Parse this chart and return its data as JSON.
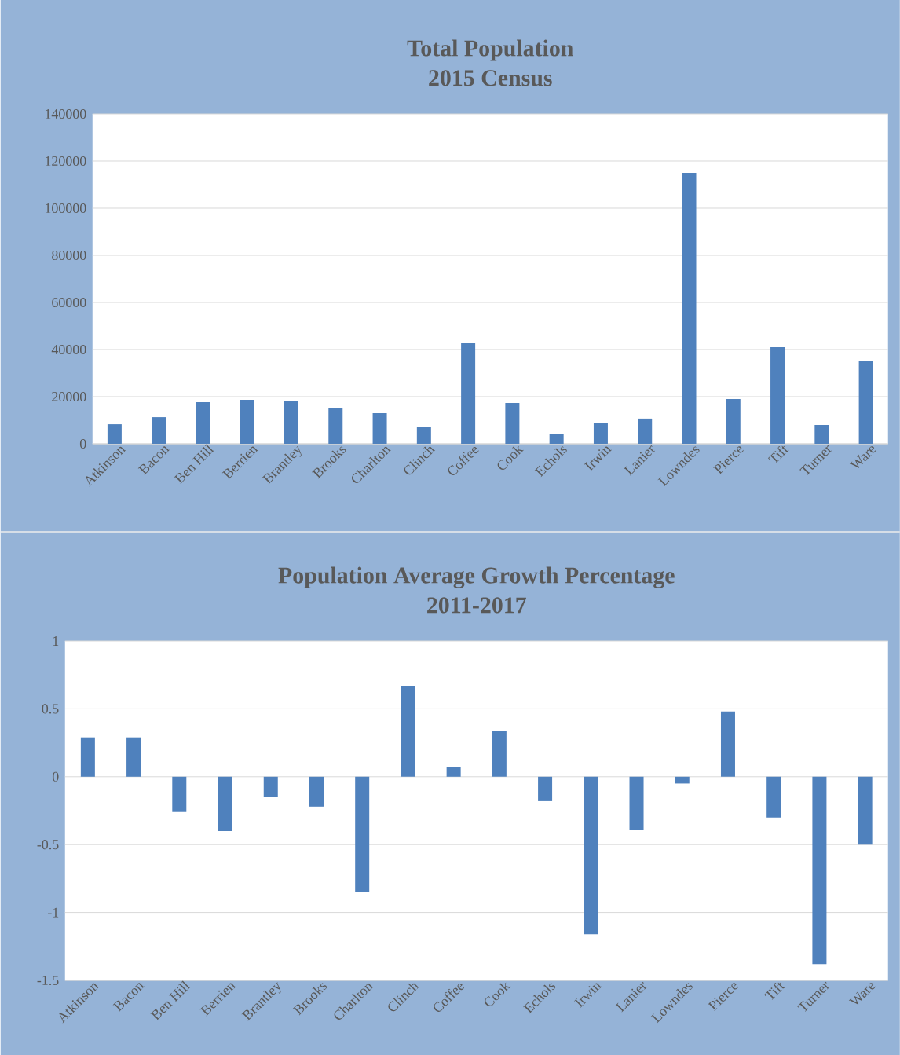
{
  "chart_data": [
    {
      "type": "bar",
      "title": "Total Population",
      "subtitle": "2015 Census",
      "categories": [
        "Atkinson",
        "Bacon",
        "Ben Hill",
        "Berrien",
        "Brantley",
        "Brooks",
        "Charlton",
        "Clinch",
        "Coffee",
        "Cook",
        "Echols",
        "Irwin",
        "Lanier",
        "Lowndes",
        "Pierce",
        "Tift",
        "Turner",
        "Ware"
      ],
      "values": [
        8300,
        11300,
        17700,
        18700,
        18300,
        15300,
        13000,
        7000,
        43000,
        17300,
        4300,
        9000,
        10700,
        115000,
        19000,
        41000,
        8000,
        35300
      ],
      "color": "#4f81bd",
      "ylim": [
        0,
        140000
      ],
      "yticks": [
        0,
        20000,
        40000,
        60000,
        80000,
        100000,
        120000,
        140000
      ],
      "grid": "y"
    },
    {
      "type": "bar",
      "title": "Population Average Growth Percentage",
      "subtitle": "2011-2017",
      "categories": [
        "Atkinson",
        "Bacon",
        "Ben Hill",
        "Berrien",
        "Brantley",
        "Brooks",
        "Charlton",
        "Clinch",
        "Coffee",
        "Cook",
        "Echols",
        "Irwin",
        "Lanier",
        "Lowndes",
        "Pierce",
        "Tift",
        "Turner",
        "Ware"
      ],
      "values": [
        0.29,
        0.29,
        -0.26,
        -0.4,
        -0.15,
        -0.22,
        -0.85,
        0.67,
        0.07,
        0.34,
        -0.18,
        -1.16,
        -0.39,
        -0.05,
        0.48,
        -0.3,
        -1.38,
        -0.5
      ],
      "color": "#4f81bd",
      "ylim": [
        -1.5,
        1
      ],
      "yticks": [
        -1.5,
        -1,
        -0.5,
        0,
        0.5,
        1
      ],
      "grid": "y"
    }
  ]
}
